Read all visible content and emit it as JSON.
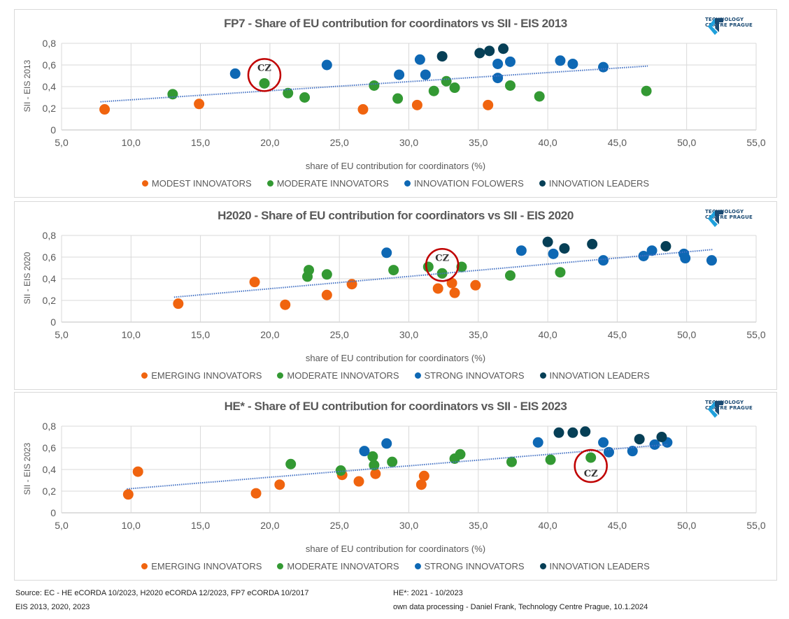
{
  "logo": {
    "line1": "TECHNOLOGY",
    "line2": "CENTRE PRAGUE",
    "icon": "ctp-logo-icon"
  },
  "colors": {
    "orange": "#f0640f",
    "green": "#339933",
    "blue": "#0e68b4",
    "dark": "#063f56",
    "trend": "#4472c4",
    "highlight": "#c00000",
    "grid": "#d9d9d9"
  },
  "chart_data": [
    {
      "type": "scatter",
      "title": "FP7 - Share of EU contribution for coordinators vs SII - EIS 2013",
      "xlabel": "share of EU contribution for coordinators (%)",
      "ylabel": "SII - EIS 2013",
      "xlim": [
        5,
        55
      ],
      "ylim": [
        0,
        0.8
      ],
      "xticks": [
        "5,0",
        "10,0",
        "15,0",
        "20,0",
        "25,0",
        "30,0",
        "35,0",
        "40,0",
        "45,0",
        "50,0",
        "55,0"
      ],
      "yticks": [
        "0",
        "0,2",
        "0,4",
        "0,6",
        "0,8"
      ],
      "grid": true,
      "legend_position": "bottom",
      "highlight": {
        "label": "CZ",
        "x": 19.6,
        "y": 0.43,
        "label_position": "above"
      },
      "trendline": {
        "style": "dotted",
        "x": [
          7.8,
          47.2
        ],
        "y": [
          0.26,
          0.59
        ]
      },
      "series": [
        {
          "name": "MODEST INNOVATORS",
          "color_key": "orange",
          "points": [
            [
              8.1,
              0.19
            ],
            [
              14.9,
              0.24
            ],
            [
              26.7,
              0.19
            ],
            [
              30.6,
              0.23
            ],
            [
              35.7,
              0.23
            ]
          ]
        },
        {
          "name": "MODERATE INNOVATORS",
          "color_key": "green",
          "points": [
            [
              13.0,
              0.33
            ],
            [
              19.6,
              0.43
            ],
            [
              21.3,
              0.34
            ],
            [
              22.5,
              0.3
            ],
            [
              27.5,
              0.41
            ],
            [
              29.2,
              0.29
            ],
            [
              31.8,
              0.36
            ],
            [
              32.7,
              0.45
            ],
            [
              33.3,
              0.39
            ],
            [
              37.3,
              0.41
            ],
            [
              39.4,
              0.31
            ],
            [
              47.1,
              0.36
            ]
          ]
        },
        {
          "name": "INNOVATION FOLOWERS",
          "color_key": "blue",
          "points": [
            [
              17.5,
              0.52
            ],
            [
              24.1,
              0.6
            ],
            [
              29.3,
              0.51
            ],
            [
              30.8,
              0.65
            ],
            [
              31.2,
              0.51
            ],
            [
              36.4,
              0.48
            ],
            [
              36.4,
              0.61
            ],
            [
              37.3,
              0.63
            ],
            [
              40.9,
              0.64
            ],
            [
              41.8,
              0.61
            ],
            [
              44.0,
              0.58
            ]
          ]
        },
        {
          "name": "INNOVATION LEADERS",
          "color_key": "dark",
          "points": [
            [
              32.4,
              0.68
            ],
            [
              35.1,
              0.71
            ],
            [
              35.8,
              0.73
            ],
            [
              36.8,
              0.75
            ]
          ]
        }
      ]
    },
    {
      "type": "scatter",
      "title": "H2020 - Share of EU contribution for coordinators vs SII - EIS 2020",
      "xlabel": "share of EU contribution for coordinators (%)",
      "ylabel": "SII - EIS 2020",
      "xlim": [
        5,
        55
      ],
      "ylim": [
        0,
        0.8
      ],
      "xticks": [
        "5,0",
        "10,0",
        "15,0",
        "20,0",
        "25,0",
        "30,0",
        "35,0",
        "40,0",
        "45,0",
        "50,0",
        "55,0"
      ],
      "yticks": [
        "0",
        "0,2",
        "0,4",
        "0,6",
        "0,8"
      ],
      "grid": true,
      "legend_position": "bottom",
      "highlight": {
        "label": "CZ",
        "x": 32.4,
        "y": 0.45,
        "label_position": "above"
      },
      "trendline": {
        "style": "dotted",
        "x": [
          13.1,
          51.9
        ],
        "y": [
          0.23,
          0.67
        ]
      },
      "series": [
        {
          "name": "EMERGING INNOVATORS",
          "color_key": "orange",
          "points": [
            [
              13.4,
              0.17
            ],
            [
              18.9,
              0.37
            ],
            [
              21.1,
              0.16
            ],
            [
              24.1,
              0.25
            ],
            [
              25.9,
              0.35
            ],
            [
              32.1,
              0.31
            ],
            [
              33.1,
              0.36
            ],
            [
              33.3,
              0.27
            ],
            [
              34.8,
              0.34
            ]
          ]
        },
        {
          "name": "MODERATE INNOVATORS",
          "color_key": "green",
          "points": [
            [
              22.7,
              0.42
            ],
            [
              22.8,
              0.48
            ],
            [
              24.1,
              0.44
            ],
            [
              28.9,
              0.48
            ],
            [
              31.4,
              0.51
            ],
            [
              32.4,
              0.45
            ],
            [
              33.8,
              0.51
            ],
            [
              37.3,
              0.43
            ],
            [
              40.9,
              0.46
            ]
          ]
        },
        {
          "name": "STRONG INNOVATORS",
          "color_key": "blue",
          "points": [
            [
              28.4,
              0.64
            ],
            [
              38.1,
              0.66
            ],
            [
              40.4,
              0.63
            ],
            [
              44.0,
              0.57
            ],
            [
              46.9,
              0.61
            ],
            [
              47.5,
              0.66
            ],
            [
              49.8,
              0.63
            ],
            [
              49.9,
              0.59
            ],
            [
              51.8,
              0.57
            ]
          ]
        },
        {
          "name": "INNOVATION LEADERS",
          "color_key": "dark",
          "points": [
            [
              40.0,
              0.74
            ],
            [
              41.2,
              0.68
            ],
            [
              43.2,
              0.72
            ],
            [
              48.5,
              0.7
            ]
          ]
        }
      ]
    },
    {
      "type": "scatter",
      "title": "HE* - Share of EU contribution for coordinators vs SII - EIS 2023",
      "xlabel": "share of EU contribution for coordinators (%)",
      "ylabel": "SII - EIS 2023",
      "xlim": [
        5,
        55
      ],
      "ylim": [
        0,
        0.8
      ],
      "xticks": [
        "5,0",
        "10,0",
        "15,0",
        "20,0",
        "25,0",
        "30,0",
        "35,0",
        "40,0",
        "45,0",
        "50,0",
        "55,0"
      ],
      "yticks": [
        "0",
        "0,2",
        "0,4",
        "0,6",
        "0,8"
      ],
      "grid": true,
      "legend_position": "bottom",
      "highlight": {
        "label": "CZ",
        "x": 43.1,
        "y": 0.51,
        "label_position": "below"
      },
      "trendline": {
        "style": "dotted",
        "x": [
          9.7,
          48.6
        ],
        "y": [
          0.22,
          0.63
        ]
      },
      "series": [
        {
          "name": "EMERGING INNOVATORS",
          "color_key": "orange",
          "points": [
            [
              9.8,
              0.17
            ],
            [
              10.5,
              0.38
            ],
            [
              19.0,
              0.18
            ],
            [
              20.7,
              0.26
            ],
            [
              25.2,
              0.35
            ],
            [
              26.4,
              0.29
            ],
            [
              27.6,
              0.36
            ],
            [
              30.9,
              0.26
            ],
            [
              31.1,
              0.34
            ]
          ]
        },
        {
          "name": "MODERATE INNOVATORS",
          "color_key": "green",
          "points": [
            [
              21.5,
              0.45
            ],
            [
              25.1,
              0.39
            ],
            [
              27.4,
              0.52
            ],
            [
              27.5,
              0.44
            ],
            [
              28.8,
              0.47
            ],
            [
              33.3,
              0.5
            ],
            [
              33.7,
              0.54
            ],
            [
              37.4,
              0.47
            ],
            [
              40.2,
              0.49
            ],
            [
              43.1,
              0.51
            ]
          ]
        },
        {
          "name": "STRONG INNOVATORS",
          "color_key": "blue",
          "points": [
            [
              26.8,
              0.57
            ],
            [
              28.4,
              0.64
            ],
            [
              39.3,
              0.65
            ],
            [
              44.0,
              0.65
            ],
            [
              44.4,
              0.56
            ],
            [
              46.1,
              0.57
            ],
            [
              47.7,
              0.63
            ],
            [
              48.6,
              0.65
            ]
          ]
        },
        {
          "name": "INNOVATION LEADERS",
          "color_key": "dark",
          "points": [
            [
              40.8,
              0.74
            ],
            [
              41.8,
              0.74
            ],
            [
              42.7,
              0.75
            ],
            [
              46.6,
              0.68
            ],
            [
              48.2,
              0.7
            ]
          ]
        }
      ]
    }
  ],
  "footer": {
    "source_line1": "Source: EC - HE eCORDA 10/2023, H2020 eCORDA 12/2023, FP7 eCORDA 10/2017",
    "source_line2": "EIS 2013, 2020, 2023",
    "note_line1": "HE*: 2021 - 10/2023",
    "note_line2": "own data processing - Daniel Frank, Technology Centre Prague, 10.1.2024"
  }
}
